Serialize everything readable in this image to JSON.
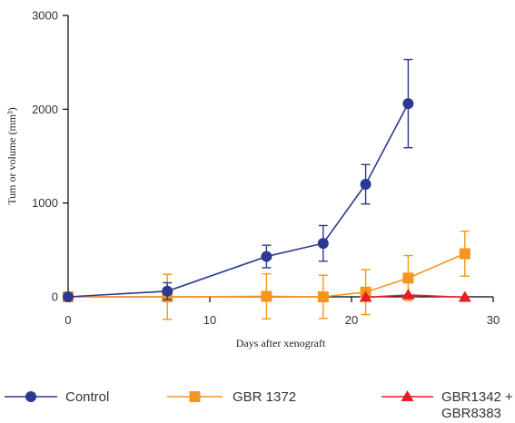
{
  "chart_data": {
    "type": "line",
    "title": "",
    "xlabel": "Days after xenograft",
    "ylabel": "Tum or volume (mm³)",
    "xlim": [
      0,
      30
    ],
    "ylim": [
      0,
      3000
    ],
    "x_ticks": [
      "0",
      "10",
      "20",
      "30"
    ],
    "y_ticks": [
      "0",
      "1000",
      "2000",
      "3000"
    ],
    "grid": false,
    "legend_position": "bottom",
    "series": [
      {
        "name": "Control",
        "color": "#2b3990",
        "marker": "circle",
        "points": [
          {
            "x": 0,
            "y": 0,
            "err": 0
          },
          {
            "x": 7,
            "y": 60,
            "err": 90
          },
          {
            "x": 14,
            "y": 430,
            "err": 120
          },
          {
            "x": 18,
            "y": 570,
            "err": 190
          },
          {
            "x": 21,
            "y": 1200,
            "err": 210
          },
          {
            "x": 24,
            "y": 2060,
            "err": 470
          }
        ]
      },
      {
        "name": "GBR 1372",
        "color": "#f7941d",
        "marker": "square",
        "points": [
          {
            "x": 0,
            "y": 0,
            "err": 0
          },
          {
            "x": 7,
            "y": 0,
            "err": 240
          },
          {
            "x": 14,
            "y": 5,
            "err": 240
          },
          {
            "x": 18,
            "y": 0,
            "err": 230
          },
          {
            "x": 21,
            "y": 50,
            "err": 240
          },
          {
            "x": 24,
            "y": 200,
            "err": 240
          },
          {
            "x": 28,
            "y": 460,
            "err": 240
          }
        ]
      },
      {
        "name": "GBR1342 + GBR8383",
        "name_lines": [
          "GBR1342 +",
          "GBR8383"
        ],
        "color": "#ed1c24",
        "marker": "triangle",
        "points": [
          {
            "x": 21,
            "y": -5,
            "err": 0
          },
          {
            "x": 24,
            "y": 20,
            "err": 0
          },
          {
            "x": 28,
            "y": -5,
            "err": 0
          }
        ]
      }
    ]
  }
}
